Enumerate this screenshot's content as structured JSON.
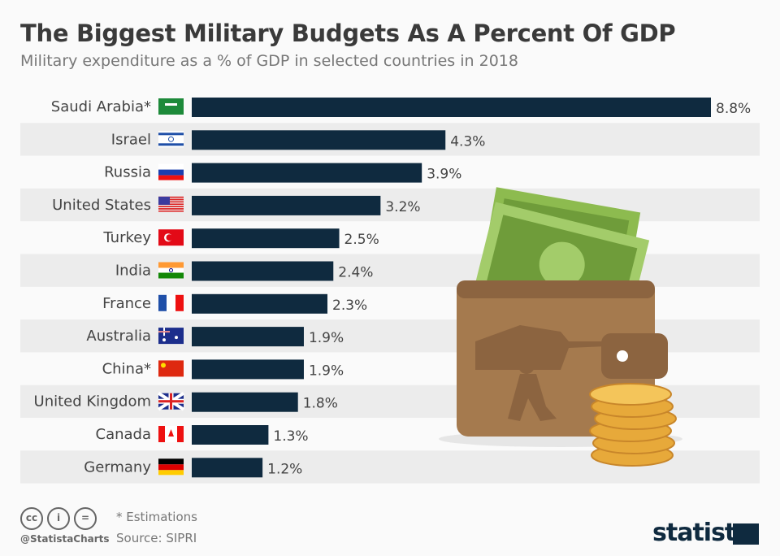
{
  "title": "The Biggest Military Budgets As A Percent Of GDP",
  "subtitle": "Military expenditure as a % of GDP in selected countries in 2018",
  "footer": {
    "note": "* Estimations",
    "source": "Source: SIPRI",
    "handle": "@StatistaCharts",
    "brand": "statista",
    "license_icons": [
      "cc-icon",
      "attribution-icon",
      "no-derivatives-icon"
    ]
  },
  "colors": {
    "bar": "#0f2a3f",
    "stripe": "#ececec"
  },
  "chart_data": {
    "type": "bar",
    "orientation": "horizontal",
    "unit": "%",
    "categories": [
      "Saudi Arabia*",
      "Israel",
      "Russia",
      "United States",
      "Turkey",
      "India",
      "France",
      "Australia",
      "China*",
      "United Kingdom",
      "Canada",
      "Germany"
    ],
    "values": [
      8.8,
      4.3,
      3.9,
      3.2,
      2.5,
      2.4,
      2.3,
      1.9,
      1.9,
      1.8,
      1.3,
      1.2
    ],
    "labels": [
      "8.8%",
      "4.3%",
      "3.9%",
      "3.2%",
      "2.5%",
      "2.4%",
      "2.3%",
      "1.9%",
      "1.9%",
      "1.8%",
      "1.3%",
      "1.2%"
    ],
    "flags": [
      "saudi-arabia-flag",
      "israel-flag",
      "russia-flag",
      "usa-flag",
      "turkey-flag",
      "india-flag",
      "france-flag",
      "australia-flag",
      "china-flag",
      "uk-flag",
      "canada-flag",
      "germany-flag"
    ],
    "xlim": [
      0,
      8.8
    ],
    "grid": false
  }
}
